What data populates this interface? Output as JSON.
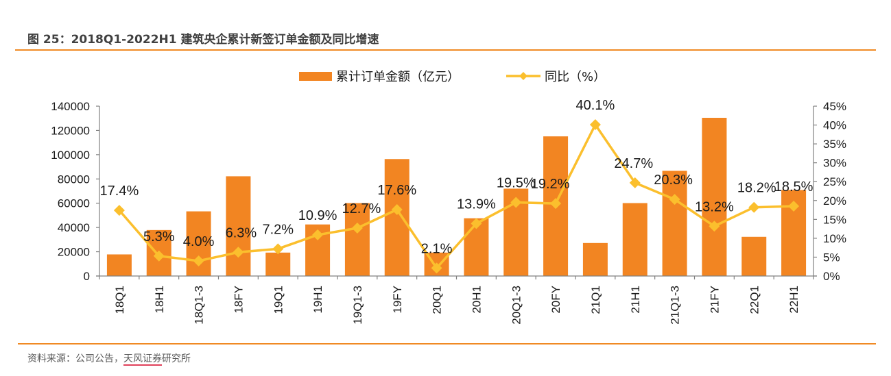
{
  "header": {
    "title": "图 25：2018Q1-2022H1 建筑央企累计新签订单金额及同比增速"
  },
  "footer": {
    "source_prefix": "资料来源：公司公告，",
    "source_highlight": "天风证券",
    "source_suffix": "研究所"
  },
  "colors": {
    "bar": "#F28522",
    "line": "#FBBF2D",
    "rule": "#F08A24",
    "axis": "#808080"
  },
  "chart_data": {
    "type": "bar",
    "title": "2018Q1-2022H1 建筑央企累计新签订单金额及同比增速",
    "legend": {
      "position": "top-center",
      "entries": [
        "累计订单金额（亿元）",
        "同比（%）"
      ]
    },
    "categories": [
      "18Q1",
      "18H1",
      "18Q1-3",
      "18FY",
      "19Q1",
      "19H1",
      "19Q1-3",
      "19FY",
      "20Q1",
      "20H1",
      "20Q1-3",
      "20FY",
      "21Q1",
      "21H1",
      "21Q1-3",
      "21FY",
      "22Q1",
      "22H1"
    ],
    "series": [
      {
        "name": "累计订单金额（亿元）",
        "type": "bar",
        "axis": "left",
        "values": [
          17800,
          37900,
          53300,
          82200,
          19300,
          42500,
          60100,
          96400,
          19300,
          47600,
          72000,
          115100,
          27200,
          60100,
          86700,
          130400,
          32300,
          70900
        ]
      },
      {
        "name": "同比（%）",
        "type": "line",
        "axis": "right",
        "values": [
          17.4,
          5.3,
          4.0,
          6.3,
          7.2,
          10.9,
          12.7,
          17.6,
          2.1,
          13.9,
          19.5,
          19.2,
          40.1,
          24.7,
          20.3,
          13.2,
          18.2,
          18.5
        ],
        "labels": [
          "17.4%",
          "5.3%",
          "4.0%",
          "6.3%",
          "7.2%",
          "10.9%",
          "12.7%",
          "17.6%",
          "2.1%",
          "13.9%",
          "19.5%",
          "19.2%",
          "40.1%",
          "24.7%",
          "20.3%",
          "13.2%",
          "18.2%",
          "18.5%"
        ]
      }
    ],
    "y_left": {
      "lim": [
        0,
        140000
      ],
      "ticks": [
        0,
        20000,
        40000,
        60000,
        80000,
        100000,
        120000,
        140000
      ],
      "tick_labels": [
        "0",
        "20000",
        "40000",
        "60000",
        "80000",
        "100000",
        "120000",
        "140000"
      ]
    },
    "y_right": {
      "lim": [
        0,
        45
      ],
      "ticks": [
        0,
        5,
        10,
        15,
        20,
        25,
        30,
        35,
        40,
        45
      ],
      "tick_labels": [
        "0%",
        "5%",
        "10%",
        "15%",
        "20%",
        "25%",
        "30%",
        "35%",
        "40%",
        "45%"
      ]
    },
    "xlabel": "",
    "grid": false
  }
}
